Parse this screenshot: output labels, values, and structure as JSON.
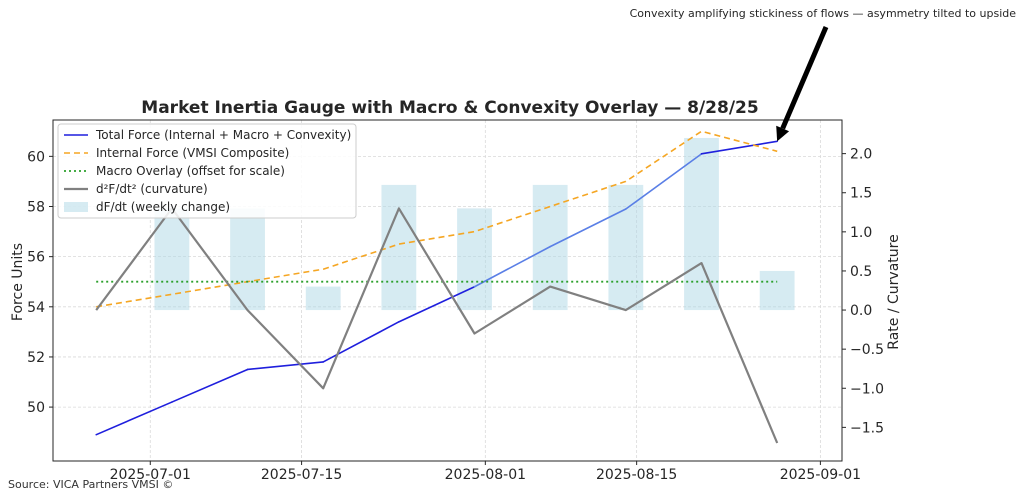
{
  "source": "Source: VICA Partners VMSI ©",
  "annotation": {
    "text": "Convexity amplifying stickiness of flows — asymmetry tilted to upside",
    "arrow_target": {
      "x": "2025-08-28",
      "y": 60.6
    }
  },
  "colors": {
    "total": "#1f1fdd",
    "total_tail": "#5a7fe6",
    "internal": "#f5a623",
    "macro": "#2ca02c",
    "curvature": "#808080",
    "bars": "#add8e6",
    "grid": "#d9d9d9",
    "axis": "#262626"
  },
  "chart_data": {
    "type": "line",
    "title": "Market Inertia Gauge with Macro & Convexity Overlay — 8/28/25",
    "xlabel": "",
    "ylabel": "Force Units",
    "ylabel_right": "Rate / Curvature",
    "x": [
      "2025-06-26",
      "2025-07-03",
      "2025-07-10",
      "2025-07-17",
      "2025-07-24",
      "2025-07-31",
      "2025-08-07",
      "2025-08-14",
      "2025-08-21",
      "2025-08-28"
    ],
    "xlim": [
      "2025-06-22",
      "2025-09-03"
    ],
    "xticks": [
      "2025-07-01",
      "2025-07-15",
      "2025-08-01",
      "2025-08-15",
      "2025-09-01"
    ],
    "ylim": [
      47.85,
      61.45
    ],
    "yticks": [
      50,
      52,
      54,
      56,
      58,
      60
    ],
    "ylim_right": [
      -1.93,
      2.43
    ],
    "yticks_right": [
      -1.5,
      -1.0,
      -0.5,
      0.0,
      0.5,
      1.0,
      1.5,
      2.0
    ],
    "yticks_right_labels": [
      "−1.5",
      "−1.0",
      "−0.5",
      "0.0",
      "0.5",
      "1.0",
      "1.5",
      "2.0"
    ],
    "grid": true,
    "legend_position": "top-left",
    "series": [
      {
        "name": "Total Force (Internal + Macro + Convexity)",
        "axis": "left",
        "style": "solid",
        "values": [
          48.9,
          50.2,
          51.5,
          51.8,
          53.4,
          54.8,
          56.4,
          57.9,
          60.1,
          60.6
        ]
      },
      {
        "name": "Internal Force (VMSI Composite)",
        "axis": "left",
        "style": "dashed",
        "values": [
          54.0,
          54.5,
          55.0,
          55.5,
          56.5,
          57.0,
          58.0,
          59.0,
          61.0,
          60.2
        ]
      },
      {
        "name": "Macro Overlay (offset for scale)",
        "axis": "left",
        "style": "dotted",
        "values": [
          55.0,
          55.0,
          55.0,
          55.0,
          55.0,
          55.0,
          55.0,
          55.0,
          55.0,
          55.0
        ]
      },
      {
        "name": "d²F/dt² (curvature)",
        "axis": "right",
        "style": "solid",
        "values": [
          0.0,
          1.3,
          0.0,
          -1.0,
          1.3,
          -0.3,
          0.3,
          0.0,
          0.6,
          -1.7
        ]
      },
      {
        "name": "dF/dt (weekly change)",
        "axis": "right",
        "style": "bar",
        "x": [
          "2025-07-03",
          "2025-07-10",
          "2025-07-17",
          "2025-07-24",
          "2025-07-31",
          "2025-08-07",
          "2025-08-14",
          "2025-08-21",
          "2025-08-28"
        ],
        "values": [
          1.3,
          1.3,
          0.3,
          1.6,
          1.3,
          1.6,
          1.6,
          2.2,
          0.5
        ]
      }
    ]
  }
}
